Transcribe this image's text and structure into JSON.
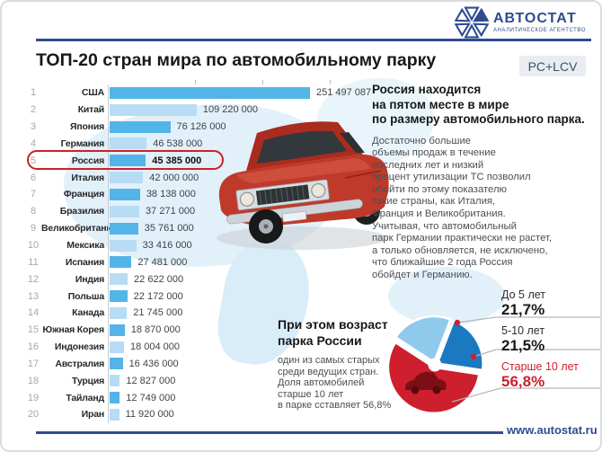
{
  "brand": {
    "logo_name": "АВТОСТАТ",
    "tagline": "АНАЛИТИЧЕСКОЕ АГЕНТСТВО",
    "website": "www.autostat.ru",
    "accent_color": "#2e4c8f"
  },
  "header": {
    "title": "ТОП-20 стран мира по автомобильному парку",
    "badge": "PC+LCV"
  },
  "chart_data": [
    {
      "type": "bar",
      "title": "ТОП-20 стран мира по автомобильному парку",
      "orientation": "horizontal",
      "highlight_rank": 5,
      "categories": [
        "США",
        "Китай",
        "Япония",
        "Германия",
        "Россия",
        "Италия",
        "Франция",
        "Бразилия",
        "Великобритания",
        "Мексика",
        "Испания",
        "Индия",
        "Польша",
        "Канада",
        "Южная Корея",
        "Индонезия",
        "Австралия",
        "Турция",
        "Тайланд",
        "Иран"
      ],
      "values": [
        251497087,
        109220000,
        76126000,
        46538000,
        45385000,
        42000000,
        38138000,
        37271000,
        35761000,
        33416000,
        27481000,
        22622000,
        22172000,
        21745000,
        18870000,
        18004000,
        16436000,
        12827000,
        12749000,
        11920000
      ],
      "value_labels": [
        "251 497 087",
        "109 220 000",
        "76 126 000",
        "46 538 000",
        "45 385 000",
        "42 000 000",
        "38 138 000",
        "37 271 000",
        "35 761 000",
        "33 416 000",
        "27 481 000",
        "22 622 000",
        "22 172 000",
        "21 745 000",
        "18 870 000",
        "18 004 000",
        "16 436 000",
        "12 827 000",
        "12 749 000",
        "11 920 000"
      ],
      "bar_colors_alternate": [
        "#53b5e7",
        "#b8dcf3"
      ],
      "highlight_color": "#cc2129",
      "xlim": [
        0,
        251497087
      ]
    },
    {
      "type": "pie",
      "title": "Возраст парка России",
      "labels": [
        "До 5 лет",
        "5-10 лет",
        "Старше 10 лет"
      ],
      "values": [
        21.7,
        21.5,
        56.8
      ],
      "value_labels": [
        "21,7%",
        "21,5%",
        "56,8%"
      ],
      "colors": [
        "#8fcaed",
        "#1b79c1",
        "#cd1f2d"
      ],
      "label_red_index": 2,
      "legend_position": "right"
    }
  ],
  "side_note": {
    "heading": "Россия находится\nна пятом месте в мире\nпо размеру автомобильного парка.",
    "body": "Достаточно большие\nобъемы продаж в течение\nпоследних лет и низкий\nпроцент утилизации ТС позволил\nобойти по этому показателю\nтакие страны, как Италия,\nФранция и Великобритания.\nУчитывая, что автомобильный\nпарк Германии практически не растет,\nа только обновляется, не исключено,\nчто ближайшие 2 года Россия\nобойдет и Германию."
  },
  "age_note": {
    "heading": "При этом возраст\nпарка России",
    "body": "один из самых старых\nсреди ведущих стран.\nДоля автомобилей\nстарше 10 лет\nв парке сставляет 56,8%"
  }
}
